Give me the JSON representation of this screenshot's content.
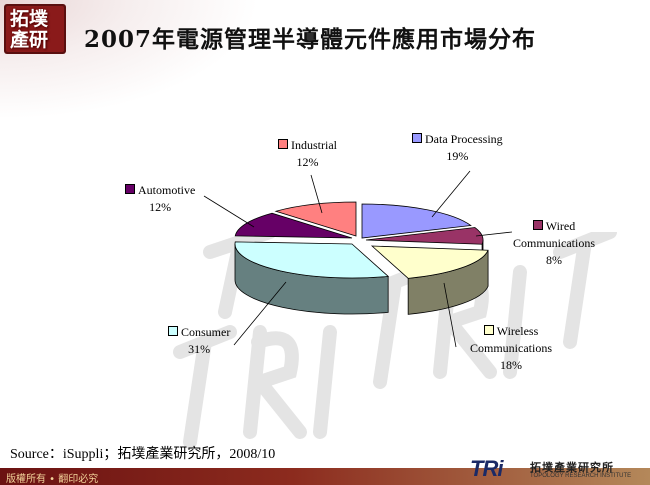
{
  "header": {
    "title": "2007年電源管理半導體元件應用市場分布",
    "logo_text_top": "拓墣",
    "logo_text_bottom": "產研"
  },
  "chart_data": {
    "type": "pie",
    "title": "2007年電源管理半導體元件應用市場分布",
    "unit": "%",
    "three_d": true,
    "slices": [
      {
        "name": "Data Processing",
        "label_lines": [
          "Data Processing"
        ],
        "value": 19,
        "value_label": "19%",
        "color": "#9999ff",
        "side_color": "#4d4d80"
      },
      {
        "name": "Wired Communications",
        "label_lines": [
          "Wired",
          "Communications"
        ],
        "value": 8,
        "value_label": "8%",
        "color": "#993366",
        "side_color": "#4d1a33"
      },
      {
        "name": "Wireless Communications",
        "label_lines": [
          "Wireless",
          "Communications"
        ],
        "value": 18,
        "value_label": "18%",
        "color": "#ffffcc",
        "side_color": "#808066"
      },
      {
        "name": "Consumer",
        "label_lines": [
          "Consumer"
        ],
        "value": 31,
        "value_label": "31%",
        "color": "#ccffff",
        "side_color": "#668080"
      },
      {
        "name": "Automotive",
        "label_lines": [
          "Automotive"
        ],
        "value": 12,
        "value_label": "12%",
        "color": "#660066",
        "side_color": "#330033"
      },
      {
        "name": "Industrial",
        "label_lines": [
          "Industrial"
        ],
        "value": 12,
        "value_label": "12%",
        "color": "#ff8080",
        "side_color": "#804040"
      }
    ]
  },
  "footer": {
    "source": "Source：iSuppli；拓墣產業研究所，2008/10",
    "copyright": "版權所有 • 翻印必究",
    "tri_logo": "TRi",
    "tri_cn": "拓墣產業研究所",
    "tri_en": "TOPOLOGY RESEARCH INSTITUTE"
  }
}
